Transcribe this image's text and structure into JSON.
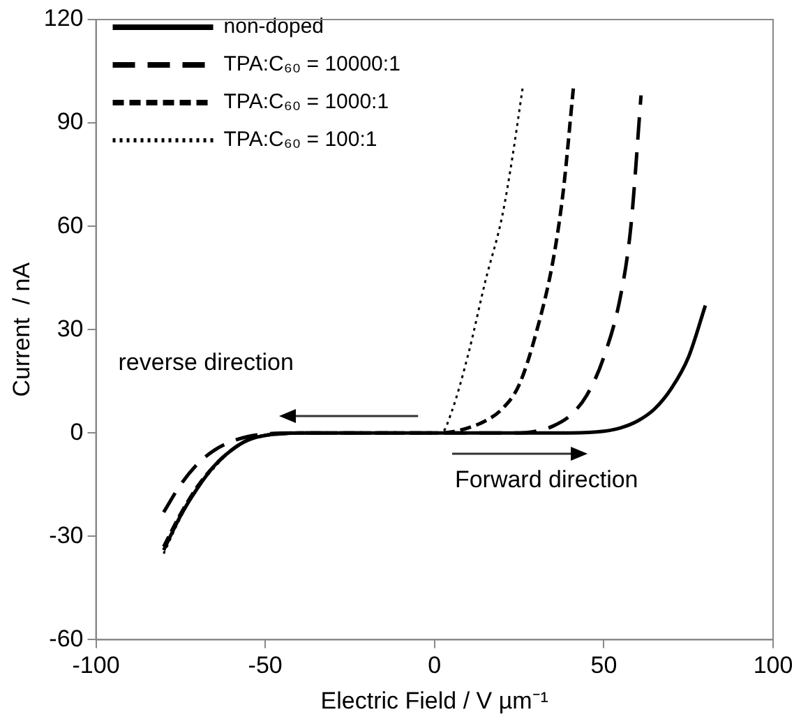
{
  "chart_data": {
    "type": "line",
    "xlabel": "Electric Field / V µm⁻¹",
    "ylabel": "Current  / nA",
    "xlim": [
      -100,
      100
    ],
    "xticks": [
      -100,
      -50,
      0,
      50,
      100
    ],
    "ylim": [
      -60,
      120
    ],
    "yticks": [
      -60,
      -30,
      0,
      30,
      60,
      90,
      120
    ],
    "grid": false,
    "legend": "top left",
    "marker": "none",
    "annotations": [
      "reverse direction",
      "Forward direction"
    ],
    "series": [
      {
        "name": "non-doped",
        "color": "#000000",
        "line_style": "solid",
        "x": [
          -80,
          -75,
          -70,
          -65,
          -60,
          -55,
          -50,
          -45,
          -40,
          0,
          40,
          50,
          55,
          60,
          65,
          70,
          75,
          80
        ],
        "values": [
          -34,
          -24,
          -16,
          -9.5,
          -5,
          -2,
          -0.7,
          -0.2,
          0,
          0,
          0,
          0.5,
          1.5,
          3.5,
          7,
          13,
          22,
          37
        ]
      },
      {
        "name": "TPA:C₆₀ = 10000:1",
        "color": "#000000",
        "line_style": "dashed",
        "x": [
          -80,
          -75,
          -70,
          -65,
          -60,
          -55,
          -50,
          -40,
          0,
          25,
          30,
          35,
          40,
          45,
          50,
          55,
          58,
          61
        ],
        "values": [
          -23,
          -15,
          -9,
          -5,
          -2.5,
          -1,
          -0.3,
          0,
          0,
          0,
          0.5,
          2,
          5,
          11,
          22,
          40,
          60,
          98
        ]
      },
      {
        "name": "TPA:C₆₀ = 1000:1",
        "color": "#000000",
        "line_style": "dashed",
        "x": [
          -80,
          -75,
          -70,
          -65,
          -60,
          -55,
          -50,
          -45,
          -40,
          0,
          5,
          10,
          15,
          20,
          25,
          30,
          35,
          38,
          41
        ],
        "values": [
          -33,
          -23.5,
          -15.5,
          -9.5,
          -5,
          -2,
          -0.7,
          -0.2,
          0,
          0,
          0.3,
          1.5,
          3.5,
          7,
          14,
          29,
          50,
          70,
          100
        ]
      },
      {
        "name": "TPA:C₆₀ = 100:1",
        "color": "#000000",
        "line_style": "dotted",
        "x": [
          -80,
          -75,
          -70,
          -65,
          -60,
          -55,
          -50,
          -45,
          -40,
          0,
          2,
          5,
          10,
          15,
          20,
          23,
          26
        ],
        "values": [
          -35,
          -24.5,
          -16,
          -10,
          -5,
          -2,
          -0.7,
          -0.2,
          0,
          0,
          0,
          6,
          23,
          44,
          63,
          80,
          100
        ]
      }
    ]
  }
}
